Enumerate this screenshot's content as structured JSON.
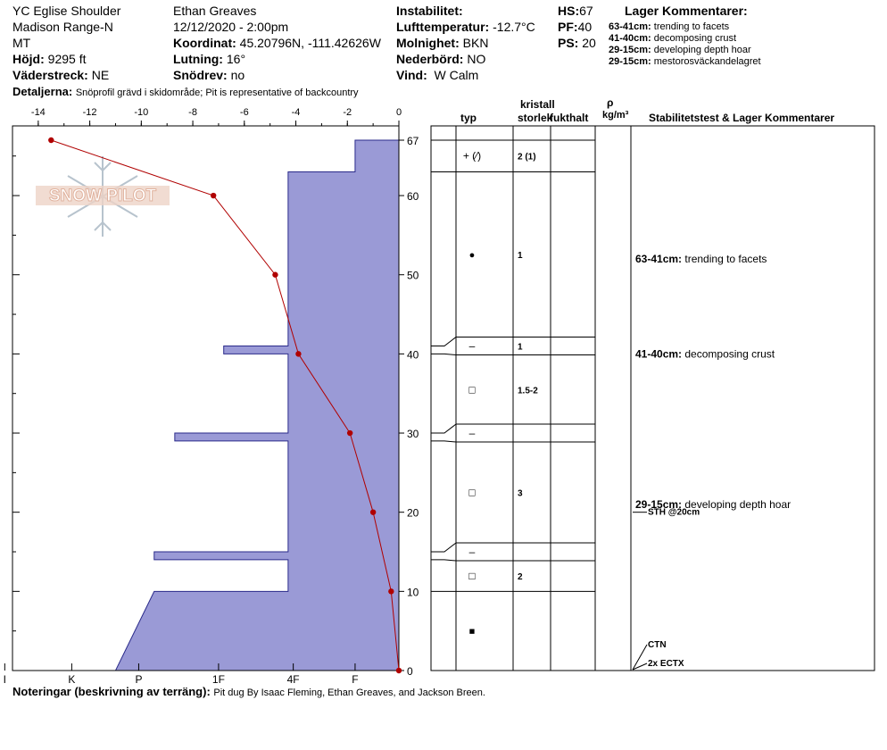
{
  "header": {
    "location": "YC Eglise Shoulder",
    "range": "Madison Range-N",
    "state": "MT",
    "elevation_label": "Höjd:",
    "elevation_value": "9295 ft",
    "aspect_label": "Väderstreck:",
    "aspect_value": "NE",
    "observer": "Ethan Greaves",
    "datetime": "12/12/2020 - 2:00pm",
    "coord_label": "Koordinat:",
    "coord_value": "45.20796N, -111.42626W",
    "slope_label": "Lutning:",
    "slope_value": "16°",
    "drift_label": "Snödrev:",
    "drift_value": "no",
    "instability_label": "Instabilitet:",
    "airtemp_label": "Lufttemperatur:",
    "airtemp_value": "-12.7°C",
    "sky_label": "Molnighet:",
    "sky_value": "BKN",
    "precip_label": "Nederbörd:",
    "precip_value": "NO",
    "wind_label": "Vind:",
    "wind_value": "W Calm",
    "hs_label": "HS:",
    "hs_value": "67",
    "pf_label": "PF:",
    "pf_value": "40",
    "ps_label": "PS:",
    "ps_value": "20",
    "layer_comments_title": "Lager Kommentarer:",
    "layer_comments": [
      {
        "range": "63-41cm:",
        "text": "trending to facets"
      },
      {
        "range": "41-40cm:",
        "text": "decomposing crust"
      },
      {
        "range": "29-15cm:",
        "text": "developing depth hoar"
      },
      {
        "range": "29-15cm:",
        "text": "mestorosväckandelagret"
      }
    ],
    "details_label": "Detaljerna:",
    "details_value": "Snöprofil grävd i skidområde;  Pit is representative of backcountry"
  },
  "columns": {
    "crystal": "kristall",
    "type": "typ",
    "size": "storlek",
    "moisture": "fukthalt",
    "rho": "ρ",
    "density_unit": "kg/m³",
    "stability": "Stabilitetstest & Lager Kommentarer"
  },
  "logo_text": "SNOW PILOT",
  "footer": {
    "label": "Noteringar (beskrivning av terräng):",
    "value": "Pit dug By Isaac Fleming, Ethan Greaves, and Jackson Breen."
  },
  "colors": {
    "hardness_fill": "#9a9ad6",
    "hardness_stroke": "#2a2a8a",
    "temp_line": "#b00000",
    "logo": "#e8bfae"
  },
  "chart_data": {
    "type": "area",
    "temperature_axis": {
      "unit": "°C",
      "range": [
        -15,
        0
      ],
      "ticks": [
        -14,
        -12,
        -10,
        -8,
        -6,
        -4,
        -2,
        0
      ]
    },
    "height_axis": {
      "unit": "cm",
      "range": [
        0,
        67
      ],
      "ticks": [
        0,
        10,
        20,
        30,
        40,
        50,
        60,
        67
      ]
    },
    "hardness_axis": {
      "ticks": [
        "I",
        "K",
        "P",
        "1F",
        "4F",
        "F"
      ],
      "positions": [
        15.3,
        12.7,
        10.1,
        7.0,
        4.1,
        1.7
      ]
    },
    "temperature_profile": [
      {
        "height": 67,
        "temp": -13.5
      },
      {
        "height": 60,
        "temp": -7.2
      },
      {
        "height": 50,
        "temp": -4.8
      },
      {
        "height": 40,
        "temp": -3.9
      },
      {
        "height": 30,
        "temp": -1.9
      },
      {
        "height": 20,
        "temp": -1.0
      },
      {
        "height": 10,
        "temp": -0.3
      },
      {
        "height": 0,
        "temp": 0.0
      }
    ],
    "hardness_layers": [
      {
        "top": 67,
        "bottom": 63,
        "hardness": 1.7
      },
      {
        "top": 63,
        "bottom": 41,
        "hardness": 4.3
      },
      {
        "top": 41,
        "bottom": 40,
        "hardness": 6.8
      },
      {
        "top": 40,
        "bottom": 30,
        "hardness": 4.3
      },
      {
        "top": 30,
        "bottom": 29,
        "hardness": 8.7
      },
      {
        "top": 29,
        "bottom": 15,
        "hardness": 4.3
      },
      {
        "top": 15,
        "bottom": 14,
        "hardness": 9.5
      },
      {
        "top": 14,
        "bottom": 10,
        "hardness": 4.3
      },
      {
        "top": 10,
        "bottom": 0,
        "hardness": 9.5,
        "bottom_hardness": 11.0
      }
    ],
    "layers": [
      {
        "top": 67,
        "bottom": 63,
        "type": "+ (⁄)",
        "size": "2 (1)"
      },
      {
        "top": 63,
        "bottom": 41,
        "type": "●",
        "size": "1"
      },
      {
        "top": 41,
        "bottom": 40,
        "type": "–",
        "size": "1"
      },
      {
        "top": 40,
        "bottom": 30,
        "type": "□",
        "size": "1.5-2"
      },
      {
        "top": 30,
        "bottom": 29,
        "type": "–",
        "size": ""
      },
      {
        "top": 29,
        "bottom": 15,
        "type": "□",
        "size": "3"
      },
      {
        "top": 15,
        "bottom": 14,
        "type": "–",
        "size": ""
      },
      {
        "top": 14,
        "bottom": 10,
        "type": "□",
        "size": "2"
      },
      {
        "top": 10,
        "bottom": 0,
        "type": "■",
        "size": ""
      }
    ],
    "comments": [
      {
        "height": 52,
        "range": "63-41cm:",
        "text": "trending to facets"
      },
      {
        "height": 40,
        "range": "41-40cm:",
        "text": "decomposing crust"
      },
      {
        "height": 21,
        "range": "29-15cm:",
        "text": "developing depth hoar"
      }
    ],
    "tests": [
      {
        "height": 20,
        "text": "STH @20cm"
      },
      {
        "height": 0,
        "text": "CTN"
      },
      {
        "height": 0,
        "text": "2x ECTX"
      }
    ]
  }
}
